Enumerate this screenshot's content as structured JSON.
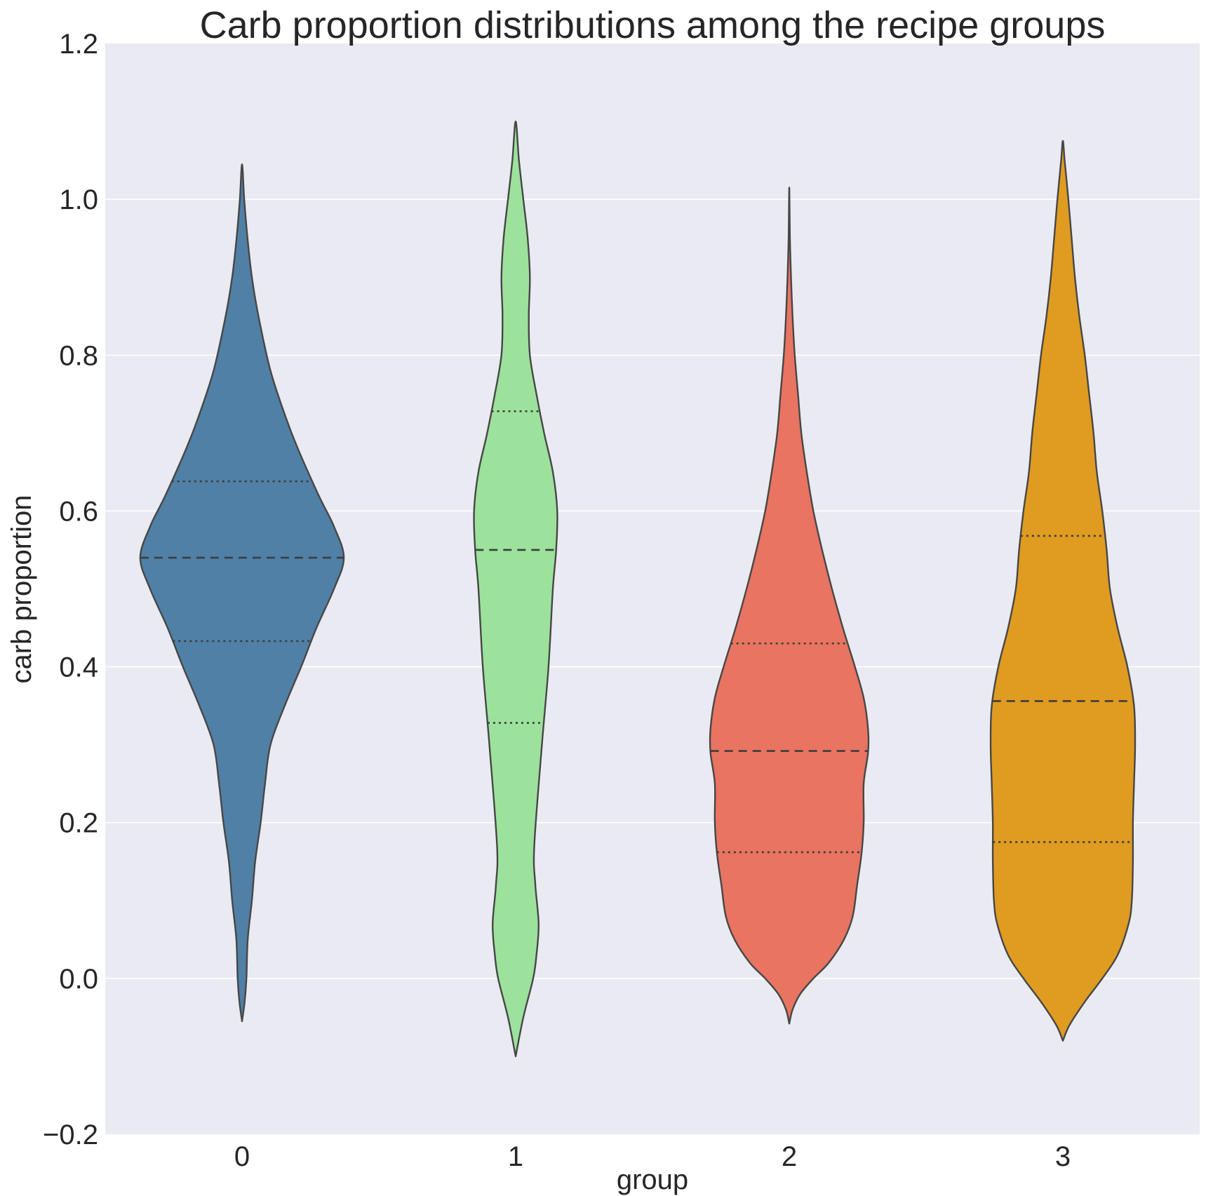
{
  "chart_data": {
    "type": "violin",
    "title": "Carb proportion distributions among the recipe groups",
    "xlabel": "group",
    "ylabel": "carb proportion",
    "ylim": [
      -0.2,
      1.2
    ],
    "yticks": [
      -0.2,
      0.0,
      0.2,
      0.4,
      0.6,
      0.8,
      1.0,
      1.2
    ],
    "ytick_labels": [
      "−0.2",
      "0.0",
      "0.2",
      "0.4",
      "0.6",
      "0.8",
      "1.0",
      "1.2"
    ],
    "grid": true,
    "background": "#eaeaf2",
    "categories": [
      "0",
      "1",
      "2",
      "3"
    ],
    "series": [
      {
        "category": "0",
        "color": "#5080a6",
        "min": -0.055,
        "max": 1.045,
        "q1": 0.433,
        "median": 0.54,
        "q3": 0.638,
        "density": [
          [
            -0.055,
            0.0
          ],
          [
            -0.03,
            0.012
          ],
          [
            0.0,
            0.02
          ],
          [
            0.05,
            0.026
          ],
          [
            0.1,
            0.045
          ],
          [
            0.15,
            0.06
          ],
          [
            0.2,
            0.085
          ],
          [
            0.25,
            0.105
          ],
          [
            0.3,
            0.13
          ],
          [
            0.35,
            0.195
          ],
          [
            0.4,
            0.27
          ],
          [
            0.45,
            0.34
          ],
          [
            0.5,
            0.42
          ],
          [
            0.54,
            0.465
          ],
          [
            0.58,
            0.42
          ],
          [
            0.62,
            0.35
          ],
          [
            0.68,
            0.255
          ],
          [
            0.72,
            0.2
          ],
          [
            0.78,
            0.13
          ],
          [
            0.85,
            0.075
          ],
          [
            0.9,
            0.045
          ],
          [
            0.95,
            0.025
          ],
          [
            1.0,
            0.01
          ],
          [
            1.045,
            0.0
          ]
        ]
      },
      {
        "category": "1",
        "color": "#9ce29c",
        "min": -0.1,
        "max": 1.1,
        "q1": 0.328,
        "median": 0.55,
        "q3": 0.728,
        "density": [
          [
            -0.1,
            0.0
          ],
          [
            -0.05,
            0.035
          ],
          [
            0.0,
            0.08
          ],
          [
            0.03,
            0.095
          ],
          [
            0.07,
            0.105
          ],
          [
            0.12,
            0.09
          ],
          [
            0.17,
            0.085
          ],
          [
            0.3,
            0.12
          ],
          [
            0.4,
            0.15
          ],
          [
            0.5,
            0.17
          ],
          [
            0.55,
            0.185
          ],
          [
            0.6,
            0.19
          ],
          [
            0.65,
            0.17
          ],
          [
            0.7,
            0.13
          ],
          [
            0.75,
            0.095
          ],
          [
            0.8,
            0.065
          ],
          [
            0.85,
            0.06
          ],
          [
            0.9,
            0.065
          ],
          [
            0.95,
            0.055
          ],
          [
            1.0,
            0.035
          ],
          [
            1.05,
            0.015
          ],
          [
            1.1,
            0.0
          ]
        ]
      },
      {
        "category": "2",
        "color": "#e87461",
        "min": -0.058,
        "max": 1.015,
        "q1": 0.162,
        "median": 0.292,
        "q3": 0.43,
        "density": [
          [
            -0.058,
            0.0
          ],
          [
            -0.04,
            0.015
          ],
          [
            -0.02,
            0.05
          ],
          [
            0.0,
            0.11
          ],
          [
            0.02,
            0.18
          ],
          [
            0.05,
            0.25
          ],
          [
            0.08,
            0.29
          ],
          [
            0.12,
            0.31
          ],
          [
            0.16,
            0.33
          ],
          [
            0.2,
            0.34
          ],
          [
            0.25,
            0.34
          ],
          [
            0.29,
            0.36
          ],
          [
            0.32,
            0.36
          ],
          [
            0.36,
            0.34
          ],
          [
            0.4,
            0.3
          ],
          [
            0.45,
            0.245
          ],
          [
            0.5,
            0.195
          ],
          [
            0.55,
            0.15
          ],
          [
            0.6,
            0.11
          ],
          [
            0.65,
            0.08
          ],
          [
            0.7,
            0.055
          ],
          [
            0.75,
            0.04
          ],
          [
            0.8,
            0.025
          ],
          [
            0.85,
            0.015
          ],
          [
            0.9,
            0.008
          ],
          [
            0.95,
            0.003
          ],
          [
            1.015,
            0.0
          ]
        ]
      },
      {
        "category": "3",
        "color": "#e09b21",
        "min": -0.08,
        "max": 1.075,
        "q1": 0.175,
        "median": 0.356,
        "q3": 0.568,
        "density": [
          [
            -0.08,
            0.0
          ],
          [
            -0.06,
            0.03
          ],
          [
            -0.03,
            0.1
          ],
          [
            0.0,
            0.18
          ],
          [
            0.03,
            0.25
          ],
          [
            0.07,
            0.3
          ],
          [
            0.1,
            0.315
          ],
          [
            0.15,
            0.32
          ],
          [
            0.2,
            0.32
          ],
          [
            0.25,
            0.325
          ],
          [
            0.3,
            0.33
          ],
          [
            0.35,
            0.325
          ],
          [
            0.4,
            0.295
          ],
          [
            0.45,
            0.25
          ],
          [
            0.5,
            0.215
          ],
          [
            0.55,
            0.2
          ],
          [
            0.6,
            0.18
          ],
          [
            0.65,
            0.155
          ],
          [
            0.7,
            0.14
          ],
          [
            0.75,
            0.12
          ],
          [
            0.8,
            0.1
          ],
          [
            0.85,
            0.075
          ],
          [
            0.9,
            0.055
          ],
          [
            0.95,
            0.04
          ],
          [
            1.0,
            0.025
          ],
          [
            1.05,
            0.008
          ],
          [
            1.075,
            0.0
          ]
        ]
      }
    ]
  }
}
